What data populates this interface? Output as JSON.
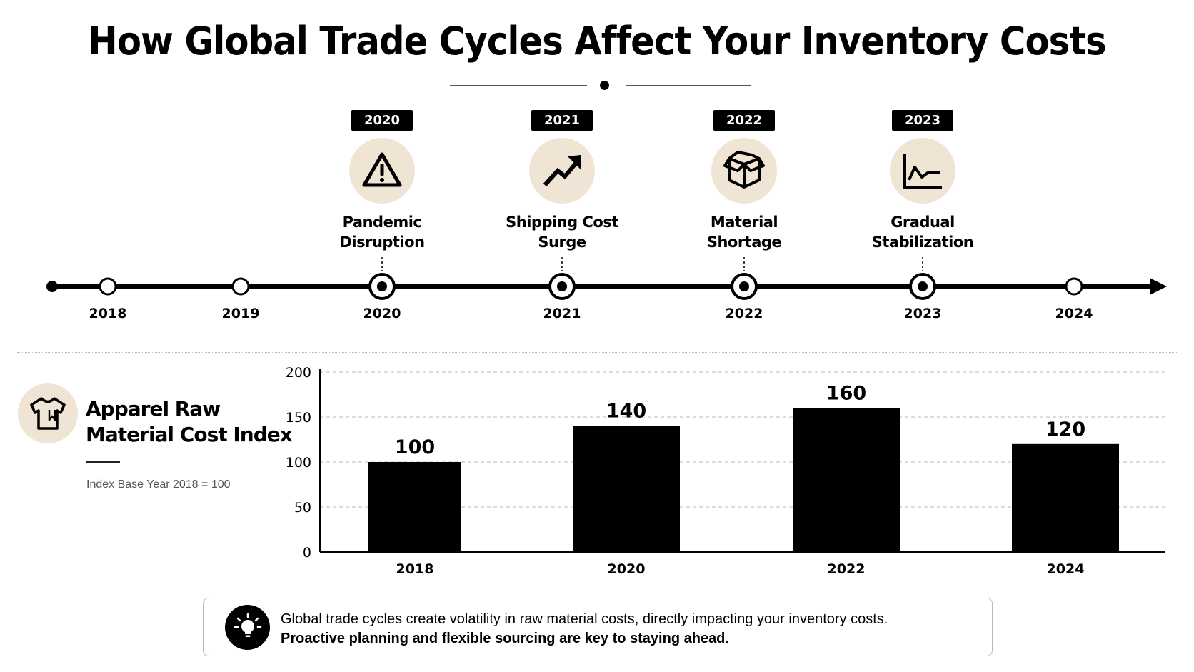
{
  "title": "How Global Trade Cycles Affect Your Inventory Costs",
  "timeline": {
    "years": [
      "2018",
      "2019",
      "2020",
      "2021",
      "2022",
      "2023",
      "2024"
    ],
    "events": [
      {
        "year": "2020",
        "icon": "warning-triangle-icon",
        "label_line1": "Pandemic",
        "label_line2": "Disruption"
      },
      {
        "year": "2021",
        "icon": "trend-up-arrow-icon",
        "label_line1": "Shipping Cost",
        "label_line2": "Surge"
      },
      {
        "year": "2022",
        "icon": "open-box-icon",
        "label_line1": "Material",
        "label_line2": "Shortage"
      },
      {
        "year": "2023",
        "icon": "line-chart-icon",
        "label_line1": "Gradual",
        "label_line2": "Stabilization"
      }
    ]
  },
  "legend": {
    "icon": "t-shirt-icon",
    "title_line1": "Apparel Raw",
    "title_line2": "Material Cost Index",
    "note": "Index Base Year 2018 = 100"
  },
  "chart_data": {
    "type": "bar",
    "categories": [
      "2018",
      "2020",
      "2022",
      "2024"
    ],
    "values": [
      100,
      140,
      160,
      120
    ],
    "ylim": [
      0,
      200
    ],
    "yticks": [
      0,
      50,
      100,
      150,
      200
    ],
    "grid": true,
    "data_labels": true,
    "bar_color": "#000000",
    "title": "",
    "xlabel": "",
    "ylabel": ""
  },
  "callout": {
    "icon": "lightbulb-icon",
    "line1": "Global trade cycles create volatility in raw material costs, directly impacting your inventory costs.",
    "line2": "Proactive planning and flexible sourcing are key to staying ahead."
  },
  "colors": {
    "accent_beige": "#f0e5d5",
    "ink": "#000000"
  }
}
